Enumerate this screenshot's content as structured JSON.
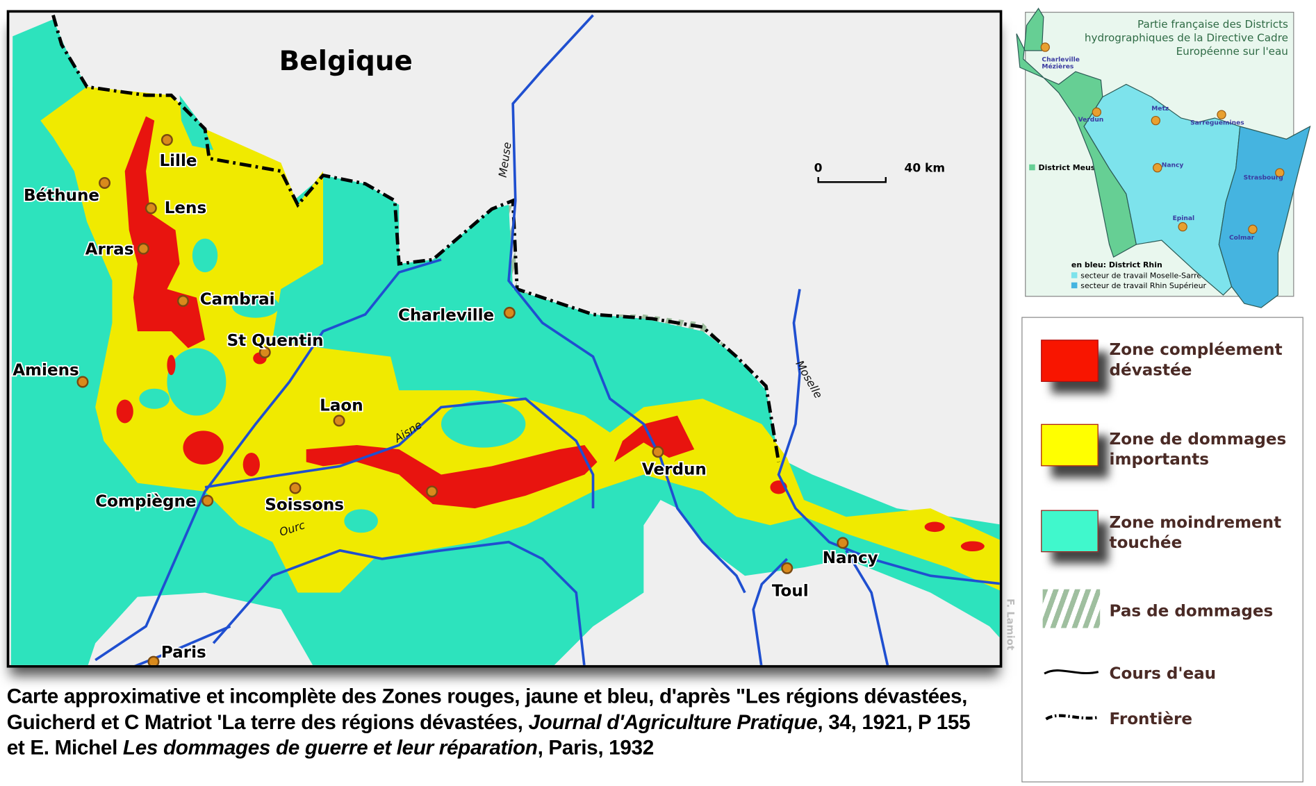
{
  "main_map": {
    "country_label": "Belgique",
    "cities": [
      {
        "name": "Lille"
      },
      {
        "name": "Béthune"
      },
      {
        "name": "Lens"
      },
      {
        "name": "Arras"
      },
      {
        "name": "Cambrai"
      },
      {
        "name": "St Quentin"
      },
      {
        "name": "Amiens"
      },
      {
        "name": "Laon"
      },
      {
        "name": "Compiègne"
      },
      {
        "name": "Soissons"
      },
      {
        "name": "Charleville"
      },
      {
        "name": "Verdun"
      },
      {
        "name": "Nancy"
      },
      {
        "name": "Toul"
      },
      {
        "name": "Paris"
      }
    ],
    "rivers": {
      "meuse": "Meuse",
      "aisne": "Aisne",
      "ourc": "Ourc",
      "moselle": "Moselle"
    },
    "scale": {
      "start": "0",
      "end": "40 km"
    },
    "author": "F. Lamiot",
    "colors": {
      "red": "#e8140f",
      "yellow": "#f0ea00",
      "teal": "#2de3bd",
      "hatch": "#9fbf9f",
      "river": "#1f4fd0",
      "background": "#efefef"
    }
  },
  "caption": {
    "line1": "Carte approximative et incomplète des Zones rouges, jaune et bleu, d'après \"Les régions dévastées,",
    "line2_a": "Guicherd et C Matriot 'La terre des régions dévastées, ",
    "line2_b": "Journal d'Agriculture Pratique",
    "line2_c": ", 34, 1921, P 155",
    "line3_a": "et E. Michel ",
    "line3_b": "Les dommages de guerre et leur réparation",
    "line3_c": ", Paris, 1932"
  },
  "inset": {
    "title_1": "Partie française des Districts",
    "title_2": "hydrographiques de la Directive Cadre",
    "title_3": "Européenne sur l'eau",
    "district_meuse": "District Meuse",
    "rhin_heading": "en bleu: District Rhin",
    "sector_1": "secteur de travail Moselle-Sarre",
    "sector_2": "secteur de travail Rhin Supérieur",
    "cities": [
      "Charleville",
      "Mézières",
      "Verdun",
      "Metz",
      "Sarreguemines",
      "Nancy",
      "Strasbourg",
      "Epinal",
      "Colmar"
    ],
    "colors": {
      "meuse": "#66cf94",
      "moselle_sarre": "#7de3ec",
      "rhin_superieur": "#45b4e0"
    }
  },
  "legend": {
    "items": [
      {
        "label_1": "Zone compléement",
        "label_2": "dévastée",
        "color": "#f81500"
      },
      {
        "label_1": "Zone de dommages",
        "label_2": "importants",
        "color": "#ffff00"
      },
      {
        "label_1": "Zone moindrement",
        "label_2": "touchée",
        "color": "#40f8cc"
      },
      {
        "label": "Pas de dommages"
      },
      {
        "label": "Cours d'eau"
      },
      {
        "label": "Frontière"
      }
    ]
  }
}
